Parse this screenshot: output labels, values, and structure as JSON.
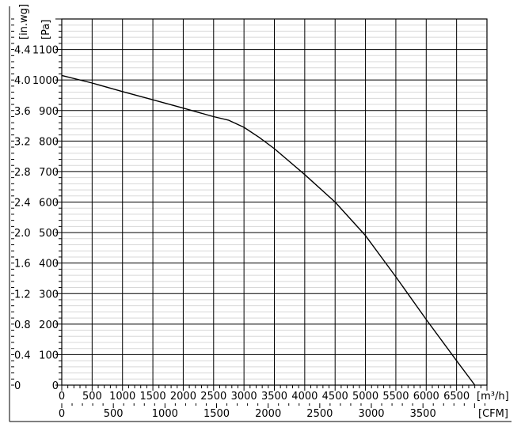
{
  "chart_data": {
    "type": "line",
    "title": "",
    "y_units": {
      "inwg": "[in.wg]",
      "pa": "[Pa]"
    },
    "x_units": {
      "m3h": "[m³/h]",
      "cfm": "[CFM]"
    },
    "x_m3h_ticks": [
      "0",
      "500",
      "1000",
      "1500",
      "2000",
      "2500",
      "3000",
      "3500",
      "4000",
      "4500",
      "5000",
      "5500",
      "6000",
      "6500"
    ],
    "x_cfm_ticks": [
      "0",
      "500",
      "1000",
      "1500",
      "2000",
      "2500",
      "3000",
      "3500"
    ],
    "y_pa_ticks": [
      "0",
      "100",
      "200",
      "300",
      "400",
      "500",
      "600",
      "700",
      "800",
      "900",
      "1000",
      "1100"
    ],
    "y_inwg_ticks": [
      "0",
      "0.4",
      "0.8",
      "1.2",
      "1.6",
      "2.0",
      "2.4",
      "2.8",
      "3.2",
      "3.6",
      "4.0",
      "4.4"
    ],
    "xlim": [
      0,
      7000
    ],
    "ylim": [
      0,
      1200
    ],
    "grid": true,
    "series": [
      {
        "name": "",
        "x": [
          0,
          500,
          1000,
          1500,
          2000,
          2500,
          2750,
          3000,
          3250,
          3500,
          4000,
          4500,
          5000,
          5500,
          6000,
          6500,
          6800
        ],
        "y": [
          1015,
          990,
          962,
          935,
          908,
          880,
          868,
          845,
          812,
          775,
          690,
          600,
          490,
          355,
          215,
          80,
          0
        ]
      }
    ]
  }
}
